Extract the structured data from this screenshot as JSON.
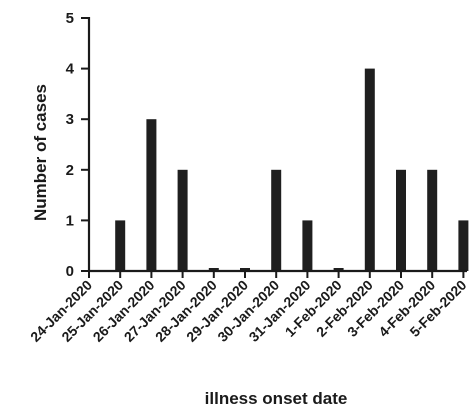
{
  "chart_data": {
    "type": "bar",
    "categories": [
      "24-Jan-2020",
      "25-Jan-2020",
      "26-Jan-2020",
      "27-Jan-2020",
      "28-Jan-2020",
      "29-Jan-2020",
      "30-Jan-2020",
      "31-Jan-2020",
      "1-Feb-2020",
      "2-Feb-2020",
      "3-Feb-2020",
      "4-Feb-2020",
      "5-Feb-2020"
    ],
    "values": [
      0,
      1,
      3,
      2,
      0,
      0,
      2,
      1,
      0,
      4,
      2,
      2,
      1
    ],
    "xlabel": "illness onset date",
    "ylabel": "Number of cases",
    "ylim": [
      0,
      5
    ],
    "yticks": [
      0,
      1,
      2,
      3,
      4,
      5
    ],
    "grid": false,
    "colors": {
      "bar": "#1f1f1f",
      "axis": "#1a1a1a"
    }
  }
}
